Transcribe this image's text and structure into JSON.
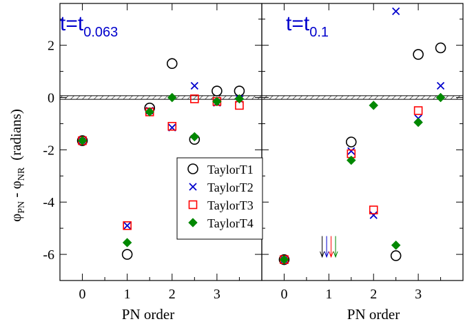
{
  "colors": {
    "taylorT1": "#000000",
    "taylorT2": "#0000cc",
    "taylorT3": "#ff0000",
    "taylorT4": "#008800",
    "title": "#0000cc",
    "arrows": [
      "#000000",
      "#0000cc",
      "#ff0000",
      "#008800"
    ]
  },
  "chart_data": {
    "type": "scatter",
    "ylabel": {
      "phi": "φ",
      "pn": "PN",
      "minus": " - ",
      "nr": "NR",
      "units": "(radians)"
    },
    "xlabel": "PN order",
    "ylim": [
      -7,
      3.6
    ],
    "yticks": [
      -6,
      -4,
      -2,
      0,
      2
    ],
    "ytick_labels": [
      "-6",
      "-4",
      "-2",
      "0",
      "2"
    ],
    "xlim": [
      -0.5,
      4.0
    ],
    "xticks": [
      0,
      1,
      2,
      3
    ],
    "xtick_labels": [
      "0",
      "1",
      "2",
      "3"
    ],
    "grid": false,
    "legend": {
      "placement": "center",
      "entries": [
        {
          "label": "TaylorT1",
          "marker": "circle"
        },
        {
          "label": "TaylorT2",
          "marker": "x"
        },
        {
          "label": "TaylorT3",
          "marker": "square"
        },
        {
          "label": "TaylorT4",
          "marker": "diamond"
        }
      ]
    },
    "panels": [
      {
        "title": {
          "main": "t=t",
          "sub": "0.063"
        },
        "band": [
          -0.07,
          0.07
        ],
        "series": [
          {
            "name": "TaylorT1",
            "marker": "circle",
            "x": [
              0,
              1,
              1.5,
              2,
              2.5,
              3,
              3.5
            ],
            "y": [
              -1.65,
              -6.0,
              -0.4,
              1.3,
              -1.6,
              0.25,
              0.25
            ]
          },
          {
            "name": "TaylorT2",
            "marker": "x",
            "x": [
              0,
              1,
              1.5,
              2,
              2.5,
              3,
              3.5
            ],
            "y": [
              -1.65,
              -4.9,
              -0.5,
              -1.15,
              0.45,
              -0.2,
              -0.05
            ]
          },
          {
            "name": "TaylorT3",
            "marker": "square",
            "x": [
              0,
              1,
              1.5,
              2,
              2.5,
              3,
              3.5
            ],
            "y": [
              -1.65,
              -4.9,
              -0.55,
              -1.1,
              -0.05,
              -0.15,
              -0.3
            ]
          },
          {
            "name": "TaylorT4",
            "marker": "diamond",
            "x": [
              0,
              1,
              1.5,
              2,
              2.5,
              3,
              3.5
            ],
            "y": [
              -1.65,
              -5.55,
              -0.55,
              0.0,
              -1.5,
              -0.15,
              -0.05
            ]
          }
        ],
        "arrows": []
      },
      {
        "title": {
          "main": "t=t",
          "sub": "0.1"
        },
        "band": [
          -0.07,
          0.07
        ],
        "series": [
          {
            "name": "TaylorT1",
            "marker": "circle",
            "x": [
              0,
              1.5,
              2.5,
              3,
              3.5
            ],
            "y": [
              -6.2,
              -1.7,
              -6.05,
              1.65,
              1.9
            ]
          },
          {
            "name": "TaylorT2",
            "marker": "x",
            "x": [
              0,
              1.5,
              2,
              2.5,
              3,
              3.5
            ],
            "y": [
              -6.2,
              -2.05,
              -4.5,
              3.3,
              -0.8,
              0.45
            ]
          },
          {
            "name": "TaylorT3",
            "marker": "square",
            "x": [
              0,
              1.5,
              2,
              3
            ],
            "y": [
              -6.2,
              -2.15,
              -4.3,
              -0.5
            ]
          },
          {
            "name": "TaylorT4",
            "marker": "diamond",
            "x": [
              0,
              1.5,
              2,
              2.5,
              3,
              3.5
            ],
            "y": [
              -6.2,
              -2.4,
              -0.3,
              -5.65,
              -0.95,
              0.0
            ]
          }
        ],
        "arrows": [
          {
            "x": 0.85,
            "y_from": -5.3,
            "y_to": -6.1
          },
          {
            "x": 0.95,
            "y_from": -5.3,
            "y_to": -6.1
          },
          {
            "x": 1.05,
            "y_from": -5.3,
            "y_to": -6.1
          },
          {
            "x": 1.15,
            "y_from": -5.3,
            "y_to": -6.1
          }
        ]
      }
    ]
  }
}
